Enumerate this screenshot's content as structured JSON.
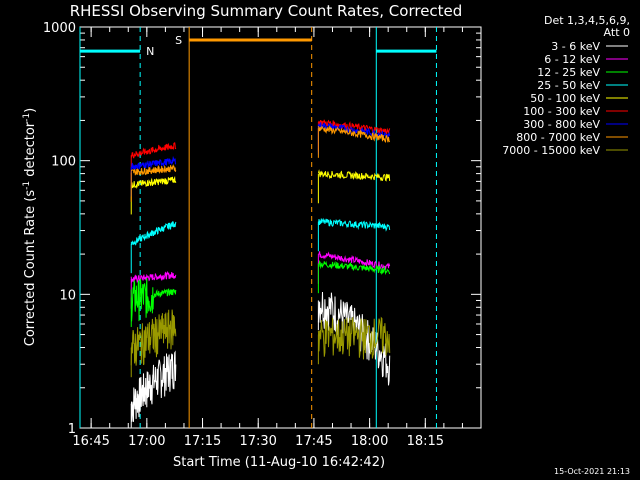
{
  "chart_data": {
    "type": "line",
    "title": "RHESSI Observing Summary Count Rates, Corrected",
    "xlabel": "Start Time (11-Aug-10 16:42:42)",
    "ylabel": "Corrected Count Rate (s⁻¹ detector⁻¹)",
    "ylabel_main": "Corrected Count Rate (s",
    "ylabel_sup1": "-1",
    "ylabel_mid": " detector",
    "ylabel_sup2": "-1",
    "ylabel_end": ")",
    "y_scale": "log",
    "ylim": [
      1,
      1000
    ],
    "xlim_minutes": [
      16.7,
      18.5
    ],
    "x_units": "hour (decimal, UT)",
    "x_tick_labels": [
      "16:45",
      "17:00",
      "17:15",
      "17:30",
      "17:45",
      "18:00",
      "18:15"
    ],
    "x_ticks": [
      16.75,
      17.0,
      17.25,
      17.5,
      17.75,
      18.0,
      18.25
    ],
    "y_tick_labels": [
      "1",
      "10",
      "100",
      "1000"
    ],
    "y_ticks": [
      1,
      10,
      100,
      1000
    ],
    "legend_header": [
      "Det 1,3,4,5,6,9,",
      "Att 0"
    ],
    "legend_placement": "right",
    "series": [
      {
        "name": "3 - 6 keV",
        "color": "#ffffff",
        "seg1": {
          "start": 16.93,
          "end": 17.13,
          "level": [
            1.5,
            3
          ]
        },
        "seg2": {
          "start": 17.77,
          "end": 18.09,
          "level": [
            9,
            3
          ]
        }
      },
      {
        "name": "6 - 12 keV",
        "color": "#ff00ff",
        "seg1": {
          "start": 16.93,
          "end": 17.13,
          "level": [
            13,
            14
          ]
        },
        "seg2": {
          "start": 17.77,
          "end": 18.09,
          "level": [
            20,
            16
          ]
        }
      },
      {
        "name": "12 - 25 keV",
        "color": "#00ff00",
        "seg1": {
          "start": 16.93,
          "end": 17.13,
          "level": [
            9.5,
            10.5
          ]
        },
        "seg2": {
          "start": 17.77,
          "end": 18.09,
          "level": [
            17,
            15
          ]
        }
      },
      {
        "name": "25 - 50 keV",
        "color": "#00ffff",
        "seg1": {
          "start": 16.93,
          "end": 17.13,
          "level": [
            24,
            34
          ]
        },
        "seg2": {
          "start": 17.77,
          "end": 18.09,
          "level": [
            35,
            32
          ]
        }
      },
      {
        "name": "50 - 100 keV",
        "color": "#ffff00",
        "seg1": {
          "start": 16.93,
          "end": 17.13,
          "level": [
            66,
            72
          ]
        },
        "seg2": {
          "start": 17.77,
          "end": 18.09,
          "level": [
            80,
            75
          ]
        }
      },
      {
        "name": "100 - 300 keV",
        "color": "#ff0000",
        "seg1": {
          "start": 16.93,
          "end": 17.13,
          "level": [
            110,
            130
          ]
        },
        "seg2": {
          "start": 17.77,
          "end": 18.09,
          "level": [
            195,
            165
          ]
        }
      },
      {
        "name": "300 - 800 keV",
        "color": "#0000ff",
        "seg1": {
          "start": 16.93,
          "end": 17.13,
          "level": [
            90,
            100
          ]
        },
        "seg2": {
          "start": 17.77,
          "end": 18.09,
          "level": [
            185,
            155
          ]
        }
      },
      {
        "name": "800 - 7000 keV",
        "color": "#ff9900",
        "seg1": {
          "start": 16.93,
          "end": 17.13,
          "level": [
            82,
            88
          ]
        },
        "seg2": {
          "start": 17.77,
          "end": 18.09,
          "level": [
            175,
            145
          ]
        }
      },
      {
        "name": "7000 - 15000 keV",
        "color": "#999900",
        "seg1": {
          "start": 16.93,
          "end": 17.13,
          "level": [
            4,
            6
          ]
        },
        "seg2": {
          "start": 17.77,
          "end": 18.09,
          "level": [
            5,
            5
          ]
        }
      }
    ],
    "annotations": [
      {
        "label": "N",
        "color": "#00ffff",
        "bar_from": 16.7,
        "bar_to": 16.97,
        "bar_y": 660,
        "line_x": 16.7,
        "dashed_x": 16.97
      },
      {
        "label": "S",
        "color": "#ff9900",
        "bar_from": 17.19,
        "bar_to": 17.74,
        "bar_y": 800,
        "line_x": 17.19,
        "dashed_x": 17.74
      },
      {
        "label": "",
        "color": "#00ffff",
        "bar_from": 18.03,
        "bar_to": 18.3,
        "bar_y": 660,
        "line_x": 18.03,
        "dashed_x": 18.3
      }
    ],
    "timestamp": "15-Oct-2021 21:13"
  }
}
